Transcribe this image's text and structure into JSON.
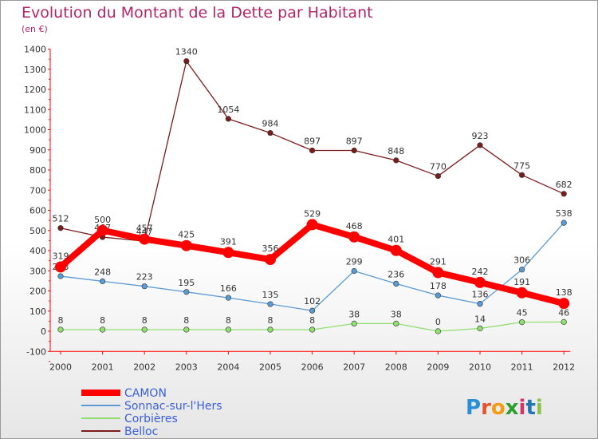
{
  "title": "Evolution du Montant de la Dette par Habitant",
  "subtitle": "(en €)",
  "logo": {
    "letters": [
      "P",
      "r",
      "o",
      "x",
      "i",
      "t",
      "i"
    ],
    "colors": [
      "#2a8fd6",
      "#e4572e",
      "#f39c12",
      "#2ca02c",
      "#d6336c",
      "#1f77b4",
      "#8bc34a"
    ]
  },
  "chart_data": {
    "type": "line",
    "title": "Evolution du Montant de la Dette par Habitant",
    "ylabel": "(en €)",
    "xlabel": "",
    "categories": [
      "2000",
      "2001",
      "2002",
      "2003",
      "2004",
      "2005",
      "2006",
      "2007",
      "2008",
      "2009",
      "2010",
      "2011",
      "2012"
    ],
    "ylim": [
      -100,
      1400
    ],
    "yticks": [
      -100,
      0,
      100,
      200,
      300,
      400,
      500,
      600,
      700,
      800,
      900,
      1000,
      1100,
      1200,
      1300,
      1400
    ],
    "grid": false,
    "legend": "bottom-left",
    "series": [
      {
        "name": "CAMON",
        "color": "#ff0000",
        "emphasis": true,
        "values": [
          319,
          500,
          457,
          425,
          391,
          356,
          529,
          468,
          401,
          291,
          242,
          191,
          138
        ],
        "labels": [
          "319",
          "500",
          "457",
          "425",
          "391",
          "356",
          "529",
          "468",
          "401",
          "291",
          "242",
          "191",
          "138"
        ]
      },
      {
        "name": "Sonnac-sur-l'Hers",
        "color": "#5b9bd5",
        "emphasis": false,
        "values": [
          273,
          248,
          223,
          195,
          166,
          135,
          102,
          299,
          236,
          178,
          136,
          306,
          538
        ],
        "labels": [
          "273",
          "248",
          "223",
          "195",
          "166",
          "135",
          "102",
          "299",
          "236",
          "178",
          "136",
          "306",
          "538"
        ]
      },
      {
        "name": "Corbières",
        "color": "#90e070",
        "emphasis": false,
        "values": [
          8,
          8,
          8,
          8,
          8,
          8,
          8,
          38,
          38,
          0,
          14,
          45,
          46
        ],
        "labels": [
          "8",
          "8",
          "8",
          "8",
          "8",
          "8",
          "8",
          "38",
          "38",
          "0",
          "14",
          "45",
          "46"
        ]
      },
      {
        "name": "Belloc",
        "color": "#7b1c1c",
        "emphasis": false,
        "values": [
          512,
          467,
          447,
          1340,
          1054,
          984,
          897,
          897,
          848,
          770,
          923,
          775,
          682
        ],
        "labels": [
          "512",
          "467",
          "447",
          "1340",
          "1054",
          "984",
          "897",
          "897",
          "848",
          "770",
          "923",
          "775",
          "682"
        ]
      }
    ]
  }
}
